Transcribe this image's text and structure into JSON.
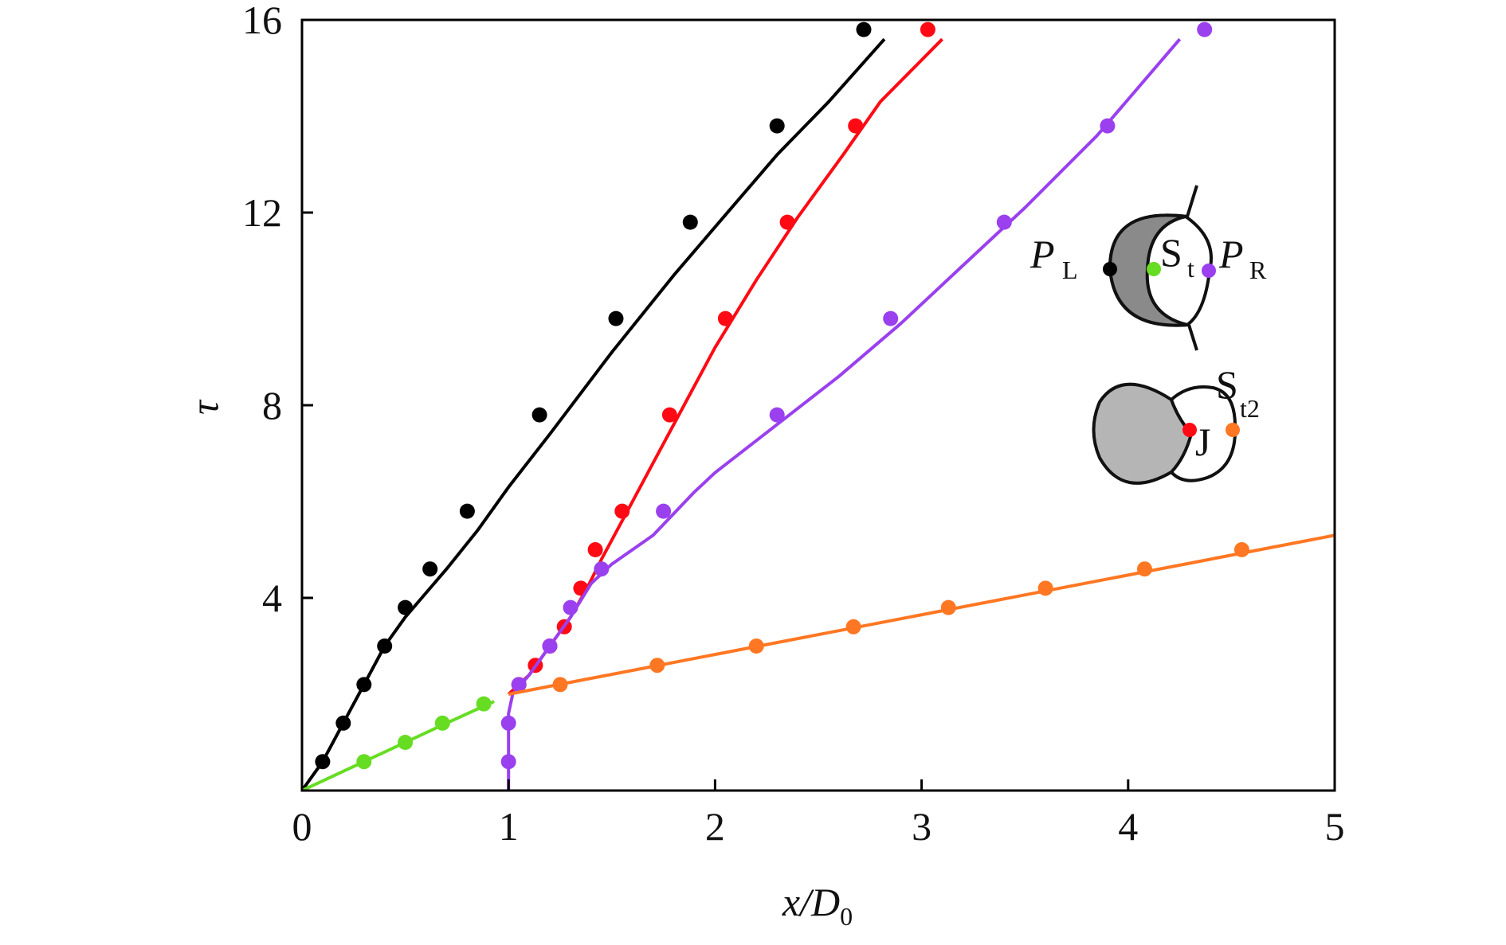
{
  "chart_data": {
    "type": "scatter",
    "xlabel": {
      "main": "x/D",
      "sub": "0"
    },
    "ylabel": "τ",
    "xlim": [
      0,
      5
    ],
    "ylim": [
      0,
      16
    ],
    "x_ticks": [
      0,
      1,
      2,
      3,
      4,
      5
    ],
    "y_ticks": [
      4,
      8,
      12,
      16
    ],
    "x_tick_labels": [
      "0",
      "1",
      "2",
      "3",
      "4",
      "5"
    ],
    "y_tick_labels": [
      "4",
      "8",
      "12",
      "16"
    ],
    "grid": false,
    "series": [
      {
        "key": "PL",
        "color": "#000000",
        "points": [
          [
            0.1,
            0.6
          ],
          [
            0.2,
            1.4
          ],
          [
            0.3,
            2.2
          ],
          [
            0.4,
            3.0
          ],
          [
            0.5,
            3.8
          ],
          [
            0.62,
            4.6
          ],
          [
            0.8,
            5.8
          ],
          [
            1.15,
            7.8
          ],
          [
            1.52,
            9.8
          ],
          [
            1.88,
            11.8
          ],
          [
            2.3,
            13.8
          ],
          [
            2.72,
            15.8
          ]
        ],
        "curve": [
          [
            0,
            0
          ],
          [
            0.1,
            0.6
          ],
          [
            0.2,
            1.4
          ],
          [
            0.3,
            2.2
          ],
          [
            0.4,
            3.0
          ],
          [
            0.5,
            3.6
          ],
          [
            0.58,
            4.0
          ],
          [
            0.7,
            4.6
          ],
          [
            0.85,
            5.4
          ],
          [
            1.0,
            6.3
          ],
          [
            1.2,
            7.4
          ],
          [
            1.5,
            9.1
          ],
          [
            1.8,
            10.7
          ],
          [
            2.1,
            12.2
          ],
          [
            2.3,
            13.2
          ],
          [
            2.55,
            14.3
          ],
          [
            2.82,
            15.6
          ]
        ]
      },
      {
        "key": "J",
        "color": "#ff0a14",
        "points": [
          [
            1.05,
            2.2
          ],
          [
            1.13,
            2.6
          ],
          [
            1.2,
            3.0
          ],
          [
            1.27,
            3.4
          ],
          [
            1.35,
            4.2
          ],
          [
            1.42,
            5.0
          ],
          [
            1.55,
            5.8
          ],
          [
            1.78,
            7.8
          ],
          [
            2.05,
            9.8
          ],
          [
            2.35,
            11.8
          ],
          [
            2.68,
            13.8
          ],
          [
            3.03,
            15.8
          ]
        ],
        "curve": [
          [
            1.0,
            2.0
          ],
          [
            1.1,
            2.4
          ],
          [
            1.2,
            3.0
          ],
          [
            1.3,
            3.6
          ],
          [
            1.38,
            4.2
          ],
          [
            1.45,
            4.8
          ],
          [
            1.55,
            5.6
          ],
          [
            1.7,
            6.8
          ],
          [
            1.85,
            8.0
          ],
          [
            2.0,
            9.2
          ],
          [
            2.2,
            10.6
          ],
          [
            2.4,
            11.9
          ],
          [
            2.62,
            13.2
          ],
          [
            2.8,
            14.3
          ],
          [
            3.1,
            15.6
          ]
        ]
      },
      {
        "key": "PR",
        "color": "#9a40ee",
        "points": [
          [
            1.0,
            0.6
          ],
          [
            1.0,
            1.4
          ],
          [
            1.05,
            2.2
          ],
          [
            1.2,
            3.0
          ],
          [
            1.3,
            3.8
          ],
          [
            1.45,
            4.6
          ],
          [
            1.75,
            5.8
          ],
          [
            2.3,
            7.8
          ],
          [
            2.85,
            9.8
          ],
          [
            3.4,
            11.8
          ],
          [
            3.9,
            13.8
          ],
          [
            4.37,
            15.8
          ]
        ],
        "curve": [
          [
            1.0,
            0
          ],
          [
            1.0,
            1.2
          ],
          [
            1.0,
            1.6
          ],
          [
            1.02,
            2.0
          ],
          [
            1.1,
            2.4
          ],
          [
            1.2,
            3.0
          ],
          [
            1.3,
            3.6
          ],
          [
            1.4,
            4.3
          ],
          [
            1.5,
            4.7
          ],
          [
            1.7,
            5.3
          ],
          [
            1.9,
            6.2
          ],
          [
            2.0,
            6.6
          ],
          [
            2.3,
            7.6
          ],
          [
            2.6,
            8.6
          ],
          [
            2.9,
            9.7
          ],
          [
            3.2,
            10.9
          ],
          [
            3.5,
            12.1
          ],
          [
            3.85,
            13.6
          ],
          [
            4.25,
            15.6
          ]
        ]
      },
      {
        "key": "St",
        "color": "#66dd22",
        "points": [
          [
            0.3,
            0.6
          ],
          [
            0.5,
            1.0
          ],
          [
            0.68,
            1.4
          ],
          [
            0.88,
            1.8
          ]
        ],
        "curve": [
          [
            0,
            0
          ],
          [
            0.3,
            0.6
          ],
          [
            0.5,
            1.0
          ],
          [
            0.7,
            1.4
          ],
          [
            0.93,
            1.85
          ]
        ]
      },
      {
        "key": "St2",
        "color": "#ff7722",
        "points": [
          [
            1.25,
            2.2
          ],
          [
            1.72,
            2.6
          ],
          [
            2.2,
            3.0
          ],
          [
            2.67,
            3.4
          ],
          [
            3.13,
            3.8
          ],
          [
            3.6,
            4.2
          ],
          [
            4.08,
            4.6
          ],
          [
            4.55,
            5.0
          ]
        ],
        "curve": [
          [
            1.0,
            2.0
          ],
          [
            5.0,
            5.3
          ]
        ]
      }
    ],
    "inset_labels": {
      "PL": "P",
      "PL_sub": "L",
      "St": "S",
      "St_sub": "t",
      "PR": "P",
      "PR_sub": "R",
      "St2": "S",
      "St2_sub": "t2",
      "J": "J"
    }
  }
}
